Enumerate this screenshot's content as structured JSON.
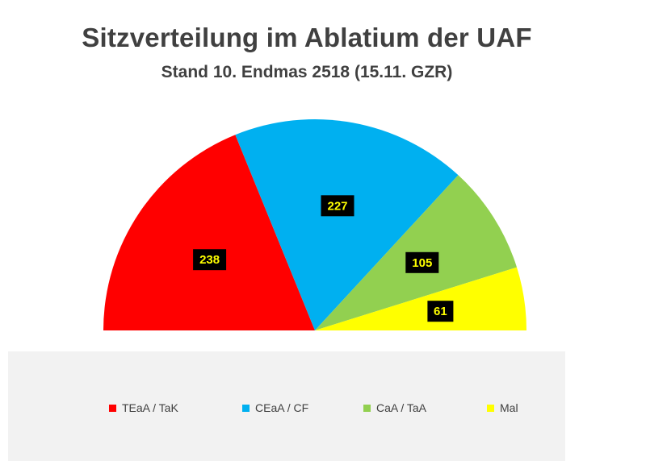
{
  "chart_data": {
    "type": "pie",
    "variant": "half-donut-parliament",
    "title": "Sitzverteilung im Ablatium der UAF",
    "subtitle": "Stand 10. Endmas 2518 (15.11. GZR)",
    "legend_position": "bottom",
    "series": [
      {
        "name": "TEaA / TaK",
        "value": 238,
        "label": "238",
        "color": "#ff0000"
      },
      {
        "name": "CEaA / CF",
        "value": 227,
        "label": "227",
        "color": "#00b0f0"
      },
      {
        "name": "CaA / TaA",
        "value": 105,
        "label": "105",
        "color": "#92d050"
      },
      {
        "name": "Mal",
        "value": 61,
        "label": "61",
        "color": "#ffff00"
      }
    ],
    "data_label_style": {
      "background": "#000000",
      "text_color": "#ffff00"
    }
  },
  "legend_background": "#f2f2f2"
}
